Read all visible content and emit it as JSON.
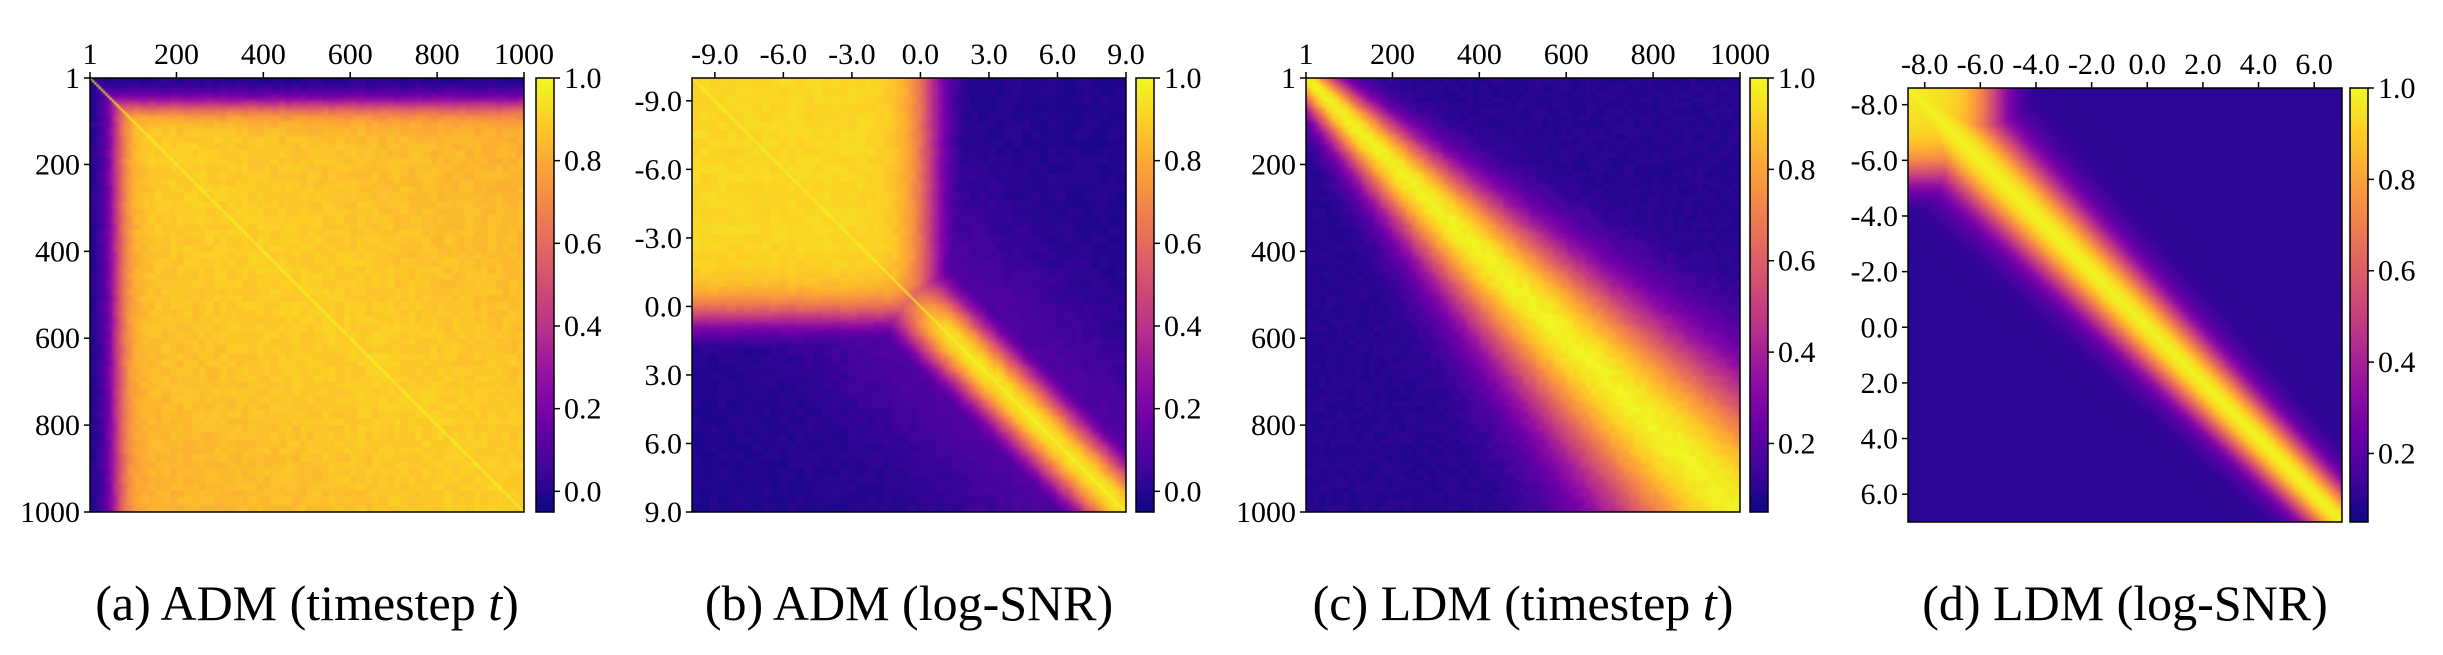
{
  "colormap": "plasma",
  "chart_data": [
    {
      "type": "heatmap",
      "caption": "(a) ADM (timestep t)",
      "caption_var": "t",
      "x_ticks": [
        "1",
        "200",
        "400",
        "600",
        "800",
        "1000"
      ],
      "y_ticks": [
        "1",
        "200",
        "400",
        "600",
        "800",
        "1000"
      ],
      "x_tick_values": [
        1,
        200,
        400,
        600,
        800,
        1000
      ],
      "axis_range": [
        1,
        1000
      ],
      "tick_position_x": "top",
      "colorbar": {
        "range": [
          -0.05,
          1.0
        ],
        "ticks": [
          "1.0",
          "0.8",
          "0.6",
          "0.4",
          "0.2",
          "0.0"
        ],
        "tick_values": [
          1.0,
          0.8,
          0.6,
          0.4,
          0.2,
          0.0
        ]
      },
      "pattern": "high similarity almost everywhere except the earliest timesteps (first row/column low)"
    },
    {
      "type": "heatmap",
      "caption": "(b) ADM (log-SNR)",
      "x_ticks": [
        "-9.0",
        "-6.0",
        "-3.0",
        "0.0",
        "3.0",
        "6.0",
        "9.0"
      ],
      "y_ticks": [
        "-9.0",
        "-6.0",
        "-3.0",
        "0.0",
        "3.0",
        "6.0",
        "9.0"
      ],
      "x_tick_values": [
        -9,
        -6,
        -3,
        0,
        3,
        6,
        9
      ],
      "axis_range": [
        -10,
        9
      ],
      "tick_position_x": "top",
      "colorbar": {
        "range": [
          -0.05,
          1.0
        ],
        "ticks": [
          "1.0",
          "0.8",
          "0.6",
          "0.4",
          "0.2",
          "0.0"
        ],
        "tick_values": [
          1.0,
          0.8,
          0.6,
          0.4,
          0.2,
          0.0
        ]
      },
      "pattern": "high similarity in low log-SNR block (-10 to ~1), low similarity between low and high log-SNR, diagonal band at high log-SNR"
    },
    {
      "type": "heatmap",
      "caption": "(c) LDM (timestep t)",
      "caption_var": "t",
      "x_ticks": [
        "1",
        "200",
        "400",
        "600",
        "800",
        "1000"
      ],
      "y_ticks": [
        "1",
        "200",
        "400",
        "600",
        "800",
        "1000"
      ],
      "x_tick_values": [
        1,
        200,
        400,
        600,
        800,
        1000
      ],
      "axis_range": [
        1,
        1000
      ],
      "tick_position_x": "top",
      "colorbar": {
        "range": [
          0.05,
          1.0
        ],
        "ticks": [
          "1.0",
          "0.8",
          "0.6",
          "0.4",
          "0.2"
        ],
        "tick_values": [
          1.0,
          0.8,
          0.6,
          0.4,
          0.2
        ]
      },
      "pattern": "diagonal band of high similarity that widens toward late timesteps"
    },
    {
      "type": "heatmap",
      "caption": "(d) LDM (log-SNR)",
      "x_ticks": [
        "-8.0",
        "-6.0",
        "-4.0",
        "-2.0",
        "0.0",
        "2.0",
        "4.0",
        "6.0"
      ],
      "y_ticks": [
        "-8.0",
        "-6.0",
        "-4.0",
        "-2.0",
        "0.0",
        "2.0",
        "4.0",
        "6.0"
      ],
      "x_tick_values": [
        -8,
        -6,
        -4,
        -2,
        0,
        2,
        4,
        6
      ],
      "axis_range": [
        -8.6,
        7.0
      ],
      "tick_position_x": "top",
      "colorbar": {
        "range": [
          0.05,
          1.0
        ],
        "ticks": [
          "1.0",
          "0.8",
          "0.6",
          "0.4",
          "0.2"
        ],
        "tick_values": [
          1.0,
          0.8,
          0.6,
          0.4,
          0.2
        ]
      },
      "pattern": "diagonal band of high similarity, block of high similarity at very low log-SNR"
    }
  ]
}
